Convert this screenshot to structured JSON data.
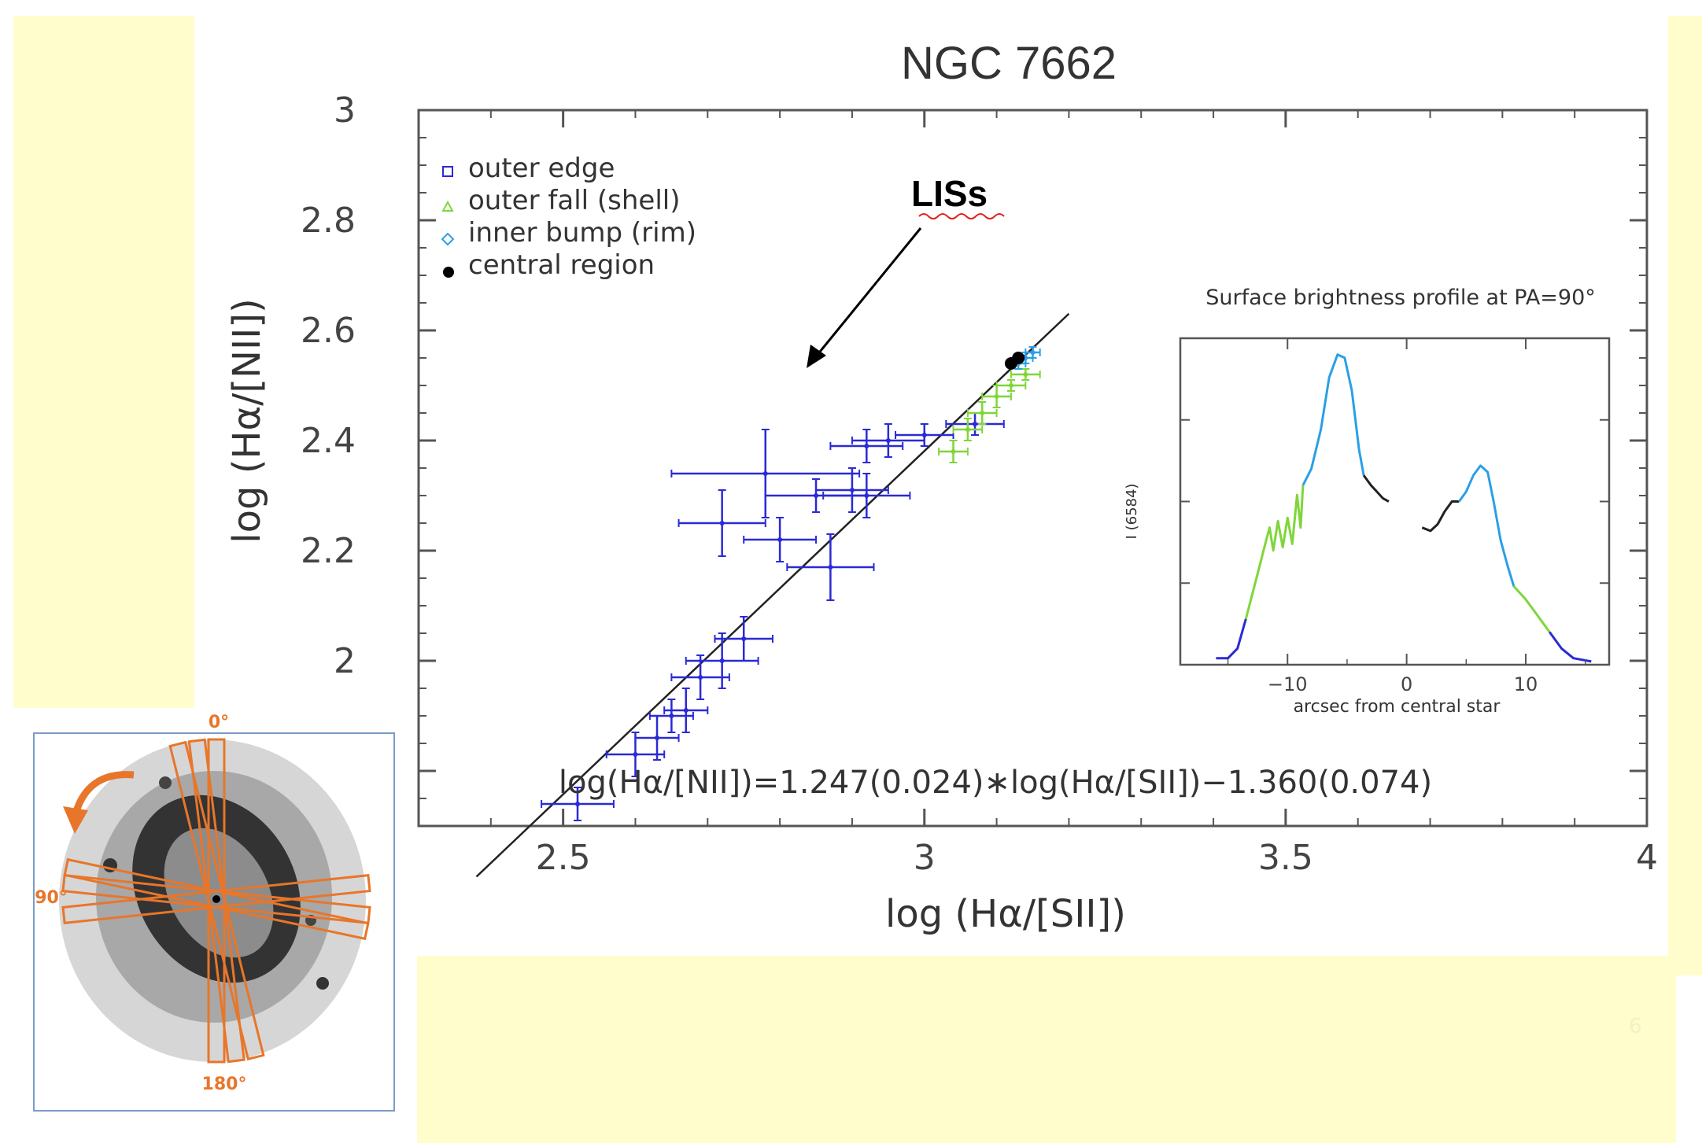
{
  "slide": {
    "number": "6",
    "background_color": "#fffdcc"
  },
  "chart_data": [
    {
      "type": "scatter",
      "title": "NGC 7662",
      "xlabel": "log (Hα/[SII])",
      "ylabel": "log (Hα/[NII])",
      "xlim": [
        2.3,
        4.0
      ],
      "ylim": [
        1.7,
        3.0
      ],
      "xticks": [
        "2.5",
        "3",
        "3.5",
        "4"
      ],
      "yticks": [
        "1.8",
        "2",
        "2.2",
        "2.4",
        "2.6",
        "2.8",
        "3"
      ],
      "grid": false,
      "legend_position": "top-left",
      "legend": [
        {
          "label": "outer edge",
          "marker": "square",
          "color": "#2a2ad6"
        },
        {
          "label": "outer fall (shell)",
          "marker": "triangle",
          "color": "#7fd63a"
        },
        {
          "label": "inner bump (rim)",
          "marker": "diamond",
          "color": "#2b9fe6"
        },
        {
          "label": "central region",
          "marker": "circle",
          "color": "#000000"
        }
      ],
      "annotation": "LISs",
      "fit_label": "log(Hα/[NII])=1.247(0.024)∗log(Hα/[SII])−1.360(0.074)",
      "fit_line": {
        "slope": 1.247,
        "intercept": -1.36,
        "x_range": [
          2.38,
          3.2
        ]
      },
      "series": [
        {
          "name": "outer edge",
          "color": "#2a2ad6",
          "points": [
            {
              "x": 2.52,
              "y": 1.74,
              "xerr": 0.05,
              "yerr": 0.03
            },
            {
              "x": 2.6,
              "y": 1.83,
              "xerr": 0.04,
              "yerr": 0.04
            },
            {
              "x": 2.63,
              "y": 1.86,
              "xerr": 0.03,
              "yerr": 0.04
            },
            {
              "x": 2.65,
              "y": 1.9,
              "xerr": 0.03,
              "yerr": 0.03
            },
            {
              "x": 2.67,
              "y": 1.91,
              "xerr": 0.03,
              "yerr": 0.04
            },
            {
              "x": 2.69,
              "y": 1.97,
              "xerr": 0.04,
              "yerr": 0.04
            },
            {
              "x": 2.72,
              "y": 2.0,
              "xerr": 0.05,
              "yerr": 0.05
            },
            {
              "x": 2.75,
              "y": 2.04,
              "xerr": 0.04,
              "yerr": 0.04
            },
            {
              "x": 2.72,
              "y": 2.25,
              "xerr": 0.06,
              "yerr": 0.06
            },
            {
              "x": 2.78,
              "y": 2.34,
              "xerr": 0.13,
              "yerr": 0.08
            },
            {
              "x": 2.8,
              "y": 2.22,
              "xerr": 0.05,
              "yerr": 0.04
            },
            {
              "x": 2.87,
              "y": 2.17,
              "xerr": 0.06,
              "yerr": 0.06
            },
            {
              "x": 2.85,
              "y": 2.3,
              "xerr": 0.07,
              "yerr": 0.03
            },
            {
              "x": 2.9,
              "y": 2.31,
              "xerr": 0.05,
              "yerr": 0.04
            },
            {
              "x": 2.92,
              "y": 2.3,
              "xerr": 0.06,
              "yerr": 0.04
            },
            {
              "x": 2.92,
              "y": 2.39,
              "xerr": 0.05,
              "yerr": 0.03
            },
            {
              "x": 2.95,
              "y": 2.4,
              "xerr": 0.05,
              "yerr": 0.03
            },
            {
              "x": 3.0,
              "y": 2.41,
              "xerr": 0.04,
              "yerr": 0.02
            },
            {
              "x": 3.07,
              "y": 2.43,
              "xerr": 0.04,
              "yerr": 0.02
            }
          ]
        },
        {
          "name": "outer fall (shell)",
          "color": "#7fd63a",
          "points": [
            {
              "x": 3.04,
              "y": 2.38,
              "xerr": 0.02,
              "yerr": 0.02
            },
            {
              "x": 3.06,
              "y": 2.42,
              "xerr": 0.02,
              "yerr": 0.02
            },
            {
              "x": 3.08,
              "y": 2.45,
              "xerr": 0.02,
              "yerr": 0.02
            },
            {
              "x": 3.1,
              "y": 2.48,
              "xerr": 0.02,
              "yerr": 0.02
            },
            {
              "x": 3.12,
              "y": 2.5,
              "xerr": 0.02,
              "yerr": 0.01
            },
            {
              "x": 3.14,
              "y": 2.52,
              "xerr": 0.02,
              "yerr": 0.01
            }
          ]
        },
        {
          "name": "inner bump (rim)",
          "color": "#2b9fe6",
          "points": [
            {
              "x": 3.13,
              "y": 2.54,
              "xerr": 0.01,
              "yerr": 0.01
            },
            {
              "x": 3.14,
              "y": 2.55,
              "xerr": 0.01,
              "yerr": 0.01
            },
            {
              "x": 3.15,
              "y": 2.56,
              "xerr": 0.01,
              "yerr": 0.01
            }
          ]
        },
        {
          "name": "central region",
          "color": "#000000",
          "points": [
            {
              "x": 3.12,
              "y": 2.54,
              "xerr": 0.0,
              "yerr": 0.0
            },
            {
              "x": 3.13,
              "y": 2.55,
              "xerr": 0.0,
              "yerr": 0.0
            }
          ]
        }
      ]
    },
    {
      "type": "line",
      "title": "Surface brightness profile at PA=90°",
      "xlabel": "arcsec from central star",
      "ylabel": "I (6584)",
      "xlim": [
        -19,
        17
      ],
      "ylim": [
        0,
        1
      ],
      "xticks": [
        "−10",
        "0",
        "10"
      ],
      "grid": false,
      "segments": [
        {
          "color": "#2a2ad6",
          "points": [
            [
              -16,
              0.02
            ],
            [
              -15,
              0.02
            ],
            [
              -14.2,
              0.05
            ],
            [
              -13.5,
              0.14
            ]
          ]
        },
        {
          "color": "#7fd63a",
          "points": [
            [
              -13.5,
              0.14
            ],
            [
              -12.5,
              0.28
            ],
            [
              -11.8,
              0.38
            ],
            [
              -11.5,
              0.42
            ],
            [
              -11.2,
              0.35
            ],
            [
              -10.8,
              0.44
            ],
            [
              -10.4,
              0.36
            ],
            [
              -10.0,
              0.45
            ],
            [
              -9.6,
              0.37
            ],
            [
              -9.2,
              0.52
            ],
            [
              -8.9,
              0.42
            ],
            [
              -8.7,
              0.55
            ]
          ]
        },
        {
          "color": "#2b9fe6",
          "points": [
            [
              -8.7,
              0.55
            ],
            [
              -8.0,
              0.6
            ],
            [
              -7.2,
              0.72
            ],
            [
              -6.5,
              0.88
            ],
            [
              -5.8,
              0.95
            ],
            [
              -5.2,
              0.94
            ],
            [
              -4.6,
              0.84
            ],
            [
              -4.0,
              0.66
            ],
            [
              -3.6,
              0.58
            ]
          ]
        },
        {
          "color": "#222222",
          "points": [
            [
              -3.6,
              0.58
            ],
            [
              -3.0,
              0.55
            ],
            [
              -2.5,
              0.53
            ],
            [
              -2.0,
              0.51
            ],
            [
              -1.5,
              0.5
            ]
          ]
        },
        {
          "color": "#222222",
          "points": [
            [
              1.3,
              0.42
            ],
            [
              2.0,
              0.41
            ],
            [
              2.6,
              0.43
            ],
            [
              3.2,
              0.47
            ],
            [
              3.8,
              0.5
            ],
            [
              4.4,
              0.5
            ]
          ]
        },
        {
          "color": "#2b9fe6",
          "points": [
            [
              4.4,
              0.5
            ],
            [
              5.0,
              0.53
            ],
            [
              5.6,
              0.58
            ],
            [
              6.2,
              0.61
            ],
            [
              6.8,
              0.59
            ],
            [
              7.3,
              0.5
            ],
            [
              7.9,
              0.38
            ],
            [
              8.5,
              0.3
            ],
            [
              9.0,
              0.24
            ]
          ]
        },
        {
          "color": "#7fd63a",
          "points": [
            [
              9.0,
              0.24
            ],
            [
              10.0,
              0.2
            ],
            [
              11.0,
              0.15
            ],
            [
              12.0,
              0.1
            ]
          ]
        },
        {
          "color": "#2a2ad6",
          "points": [
            [
              12.0,
              0.1
            ],
            [
              13.0,
              0.05
            ],
            [
              14.0,
              0.02
            ],
            [
              15.5,
              0.01
            ]
          ]
        }
      ]
    }
  ],
  "thumbnail": {
    "angle_labels": [
      "0°",
      "90°",
      "180°"
    ],
    "slit_color": "#e8762a",
    "frame_color": "#7a9bc8"
  }
}
